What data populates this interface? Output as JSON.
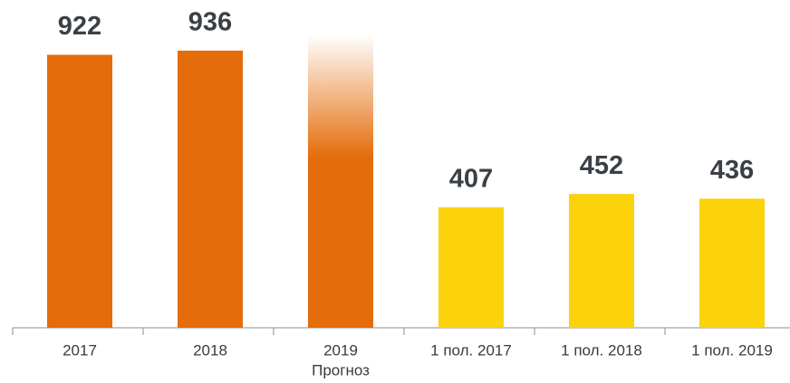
{
  "chart_data": {
    "type": "bar",
    "categories": [
      "2017",
      "2018",
      "2019",
      "1 пол. 2017",
      "1 пол. 2018",
      "1 пол. 2019"
    ],
    "values": [
      922,
      936,
      990,
      407,
      452,
      436
    ],
    "colors": [
      "#e46c0a",
      "#e46c0a",
      "#e46c0a",
      "#fcd20a",
      "#fcd20a",
      "#fcd20a"
    ],
    "forecast_category": "2019",
    "forecast_label": "Прогноз",
    "ylim": [
      0,
      1000
    ],
    "grid": false
  }
}
